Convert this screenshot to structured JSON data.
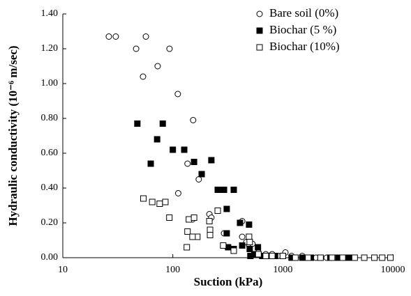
{
  "chart_data": {
    "type": "scatter",
    "x_label": "Suction (kPa)",
    "y_label": "Hydraulic conductivity (10⁻⁶ m/sec)",
    "x_log": true,
    "xlim": [
      10,
      10000
    ],
    "xticks": [
      10,
      100,
      1000,
      10000
    ],
    "ylim": [
      0,
      1.4
    ],
    "yticks": [
      {
        "value": 0,
        "label": "0.00"
      },
      {
        "value": 0.2,
        "label": "0.20"
      },
      {
        "value": 0.4,
        "label": "0.40"
      },
      {
        "value": 0.6,
        "label": "0.60"
      },
      {
        "value": 0.8,
        "label": "0.80"
      },
      {
        "value": 1.0,
        "label": "1.00"
      },
      {
        "value": 1.2,
        "label": "1.20"
      },
      {
        "value": 1.4,
        "label": "1.40"
      }
    ],
    "grid": false,
    "legend": "top-right",
    "series": [
      {
        "name": "Bare soil (0%)",
        "marker": "circle-open",
        "color": "#000000",
        "x": [
          26.2,
          30.3,
          46.4,
          56.9,
          53.6,
          72.8,
          93.3,
          111,
          153,
          112,
          136,
          172,
          215,
          224,
          151,
          292,
          427,
          427,
          466,
          495,
          529,
          600,
          700,
          800,
          900,
          1055,
          1200,
          1500,
          2000,
          2500,
          3000
        ],
        "values": [
          1.27,
          1.27,
          1.2,
          1.27,
          1.04,
          1.1,
          1.2,
          0.94,
          0.79,
          0.37,
          0.54,
          0.45,
          0.25,
          0.23,
          0.22,
          0.14,
          0.21,
          0.12,
          0.09,
          0.07,
          0.08,
          0.03,
          0.02,
          0.02,
          0.01,
          0.03,
          0.01,
          0.01,
          0.0,
          0.0,
          0.0
        ]
      },
      {
        "name": "Biochar (5 %)",
        "marker": "square-filled",
        "color": "#000000",
        "x": [
          47.6,
          63,
          72,
          81,
          100,
          127,
          156,
          183,
          224,
          256,
          292,
          309,
          309,
          358,
          408,
          493,
          318,
          358,
          427,
          500,
          507,
          594,
          550,
          650,
          750,
          850,
          1000,
          1200,
          1500,
          1800,
          2200,
          2700,
          3200,
          3800,
          4200
        ],
        "values": [
          0.77,
          0.54,
          0.68,
          0.77,
          0.62,
          0.62,
          0.55,
          0.48,
          0.56,
          0.39,
          0.39,
          0.28,
          0.14,
          0.39,
          0.2,
          0.19,
          0.06,
          0.05,
          0.07,
          0.05,
          0.01,
          0.06,
          0.02,
          0.01,
          0.01,
          0.01,
          0.01,
          0.0,
          0.0,
          0.0,
          0.0,
          0.0,
          0.0,
          0.0,
          0.0
        ]
      },
      {
        "name": "Biochar (10%)",
        "marker": "square-open",
        "color": "#000000",
        "x": [
          54,
          65,
          76,
          85.5,
          93,
          134,
          136,
          140,
          156,
          167,
          151,
          218,
          218,
          215,
          256,
          287,
          358,
          493,
          500,
          600,
          700,
          800,
          1000,
          1300,
          1700,
          2200,
          2800,
          3500,
          4500,
          5500,
          6800,
          8000,
          9500
        ],
        "values": [
          0.34,
          0.32,
          0.31,
          0.32,
          0.23,
          0.06,
          0.15,
          0.22,
          0.23,
          0.12,
          0.12,
          0.16,
          0.13,
          0.21,
          0.27,
          0.07,
          0.04,
          0.12,
          0.09,
          0.02,
          0.01,
          0.01,
          0.01,
          0.0,
          0.0,
          0.0,
          0.0,
          0.0,
          0.0,
          0.0,
          0.0,
          0.0,
          0.0
        ]
      }
    ]
  }
}
